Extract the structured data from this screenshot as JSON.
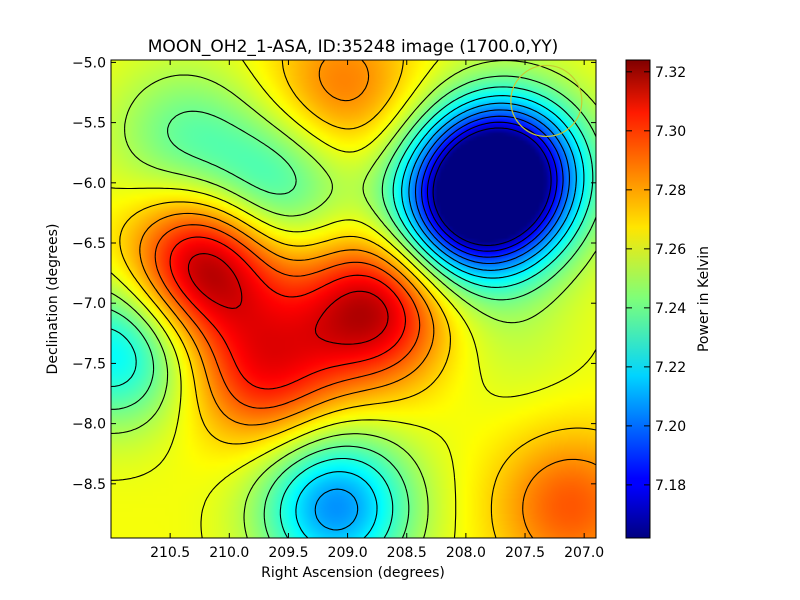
{
  "chart_data": {
    "type": "heatmap",
    "title": "MOON_OH2_1-ASA, ID:35248 image (1700.0,YY)",
    "xlabel": "Right Ascension (degrees)",
    "ylabel": "Declination (degrees)",
    "xlim": [
      211.0,
      206.9
    ],
    "ylim": [
      -8.95,
      -4.98
    ],
    "x_ticks": [
      210.5,
      210.0,
      209.5,
      209.0,
      208.5,
      208.0,
      207.5,
      207.0
    ],
    "x_tick_labels": [
      "210.5",
      "210.0",
      "209.5",
      "209.0",
      "208.5",
      "208.0",
      "207.5",
      "207.0"
    ],
    "y_ticks": [
      -5.0,
      -5.5,
      -6.0,
      -6.5,
      -7.0,
      -7.5,
      -8.0,
      -8.5
    ],
    "y_tick_labels": [
      "−5.0",
      "−5.5",
      "−6.0",
      "−6.5",
      "−7.0",
      "−7.5",
      "−8.0",
      "−8.5"
    ],
    "colorbar": {
      "label": "Power in Kelvin",
      "range": [
        7.162,
        7.324
      ],
      "ticks": [
        7.18,
        7.2,
        7.22,
        7.24,
        7.26,
        7.28,
        7.3,
        7.32
      ],
      "tick_labels": [
        "7.18",
        "7.20",
        "7.22",
        "7.24",
        "7.26",
        "7.28",
        "7.30",
        "7.32"
      ],
      "colormap": "jet"
    },
    "contours": true,
    "features": [
      {
        "ra": 207.65,
        "dec": -5.9,
        "value": 7.165,
        "kind": "minimum"
      },
      {
        "ra": 207.95,
        "dec": -6.2,
        "value": 7.18,
        "kind": "minimum"
      },
      {
        "ra": 210.2,
        "dec": -6.68,
        "value": 7.32,
        "kind": "maximum"
      },
      {
        "ra": 208.8,
        "dec": -7.05,
        "value": 7.315,
        "kind": "maximum"
      },
      {
        "ra": 209.7,
        "dec": -7.58,
        "value": 7.3,
        "kind": "maximum"
      },
      {
        "ra": 209.1,
        "dec": -8.7,
        "value": 7.205,
        "kind": "minimum"
      },
      {
        "ra": 210.95,
        "dec": -7.4,
        "value": 7.22,
        "kind": "minimum"
      },
      {
        "ra": 209.65,
        "dec": -6.05,
        "value": 7.23,
        "kind": "minimum"
      },
      {
        "ra": 210.4,
        "dec": -5.6,
        "value": 7.24,
        "kind": "minimum"
      },
      {
        "ra": 209.05,
        "dec": -5.2,
        "value": 7.285,
        "kind": "maximum"
      },
      {
        "ra": 207.1,
        "dec": -8.7,
        "value": 7.29,
        "kind": "maximum"
      },
      {
        "ra": 207.6,
        "dec": -7.3,
        "value": 7.255,
        "kind": "maximum"
      }
    ],
    "beam_circle": {
      "ra": 207.32,
      "dec": -5.32,
      "radius_deg": 0.3,
      "color": "#c8c832"
    }
  }
}
